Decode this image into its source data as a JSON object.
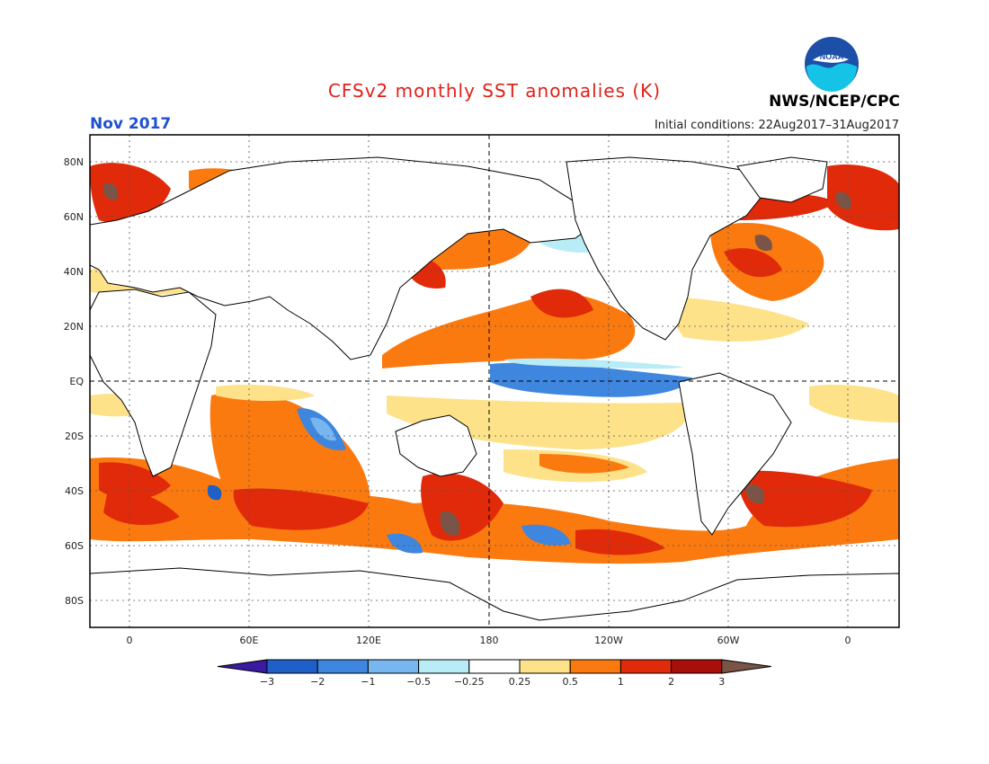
{
  "title": "CFSv2 monthly SST anomalies (K)",
  "period": "Nov 2017",
  "agency": "NWS/NCEP/CPC",
  "initial_conditions": "Initial conditions: 22Aug2017–31Aug2017",
  "logo_text": "NOAA",
  "colors": {
    "title": "#e0201a",
    "period": "#2050d0",
    "frame": "#000000"
  },
  "lat_labels": [
    "80N",
    "60N",
    "40N",
    "20N",
    "EQ",
    "20S",
    "40S",
    "60S",
    "80S"
  ],
  "lon_labels": [
    "0",
    "60E",
    "120E",
    "180",
    "120W",
    "60W",
    "0"
  ],
  "colorbar": {
    "tick_labels": [
      "−3",
      "−2",
      "−1",
      "−0.5",
      "−0.25",
      "0.25",
      "0.5",
      "1",
      "2",
      "3"
    ],
    "colors": [
      "#3a1aa0",
      "#1f5fc8",
      "#3f86de",
      "#78b6f0",
      "#b8ecf6",
      "#ffffff",
      "#fde28a",
      "#fb7a10",
      "#e02a0a",
      "#a80f0a",
      "#7a5547"
    ]
  }
}
